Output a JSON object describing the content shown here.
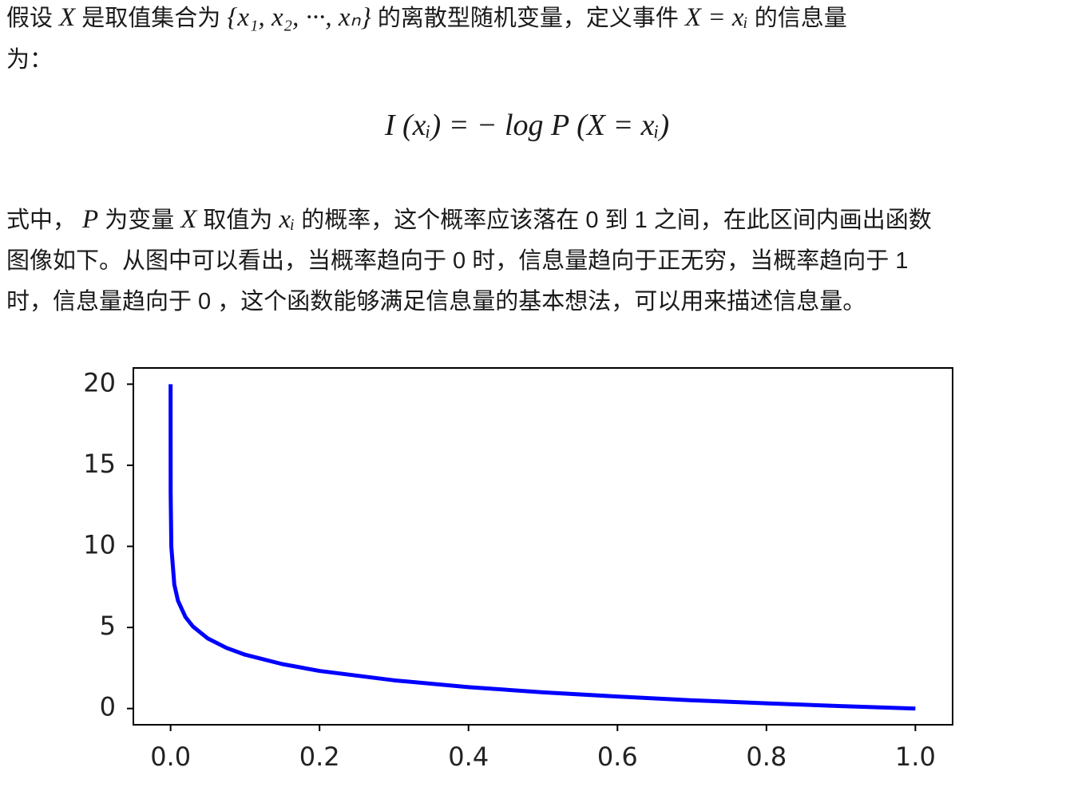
{
  "intro_line_1": [
    "假设",
    "X",
    "是取值集合为",
    "{x₁, x₂, ···, xₙ}",
    "的离散型随机变量，定义事件",
    "X = xᵢ",
    "的信息量"
  ],
  "intro_line_2": "为：",
  "formula": "I (xᵢ) = − log  P (X = xᵢ)",
  "explanation_lines": [
    [
      "式中，",
      "P",
      "为变量",
      "X",
      "取值为",
      "xᵢ",
      "的概率，这个概率应该落在 0 到 1 之间，在此区间内画出函数"
    ],
    [
      "图像如下。从图中可以看出，当概率趋向于 0 时，信息量趋向于正无穷，当概率趋向于 1"
    ],
    [
      "时，信息量趋向于 0 ，这个函数能够满足信息量的基本想法，可以用来描述信息量。"
    ]
  ],
  "chart_data": {
    "type": "line",
    "x": [
      1e-06,
      0.0001,
      0.001,
      0.005,
      0.01,
      0.02,
      0.03,
      0.05,
      0.075,
      0.1,
      0.15,
      0.2,
      0.3,
      0.4,
      0.5,
      0.6,
      0.7,
      0.8,
      0.9,
      1.0
    ],
    "values": [
      20,
      13.29,
      9.97,
      7.64,
      6.64,
      5.64,
      5.06,
      4.32,
      3.74,
      3.32,
      2.74,
      2.32,
      1.74,
      1.32,
      1,
      0.74,
      0.51,
      0.32,
      0.15,
      0
    ],
    "color": "#0000ff",
    "xlim": [
      -0.05,
      1.05
    ],
    "xticks": [
      {
        "value": 0,
        "label": "0.0"
      },
      0.2,
      0.4,
      0.6,
      0.8,
      {
        "value": 1,
        "label": "1.0"
      }
    ],
    "ylim": [
      -1,
      21
    ],
    "yticks": [
      0,
      5,
      10,
      15,
      20
    ]
  }
}
